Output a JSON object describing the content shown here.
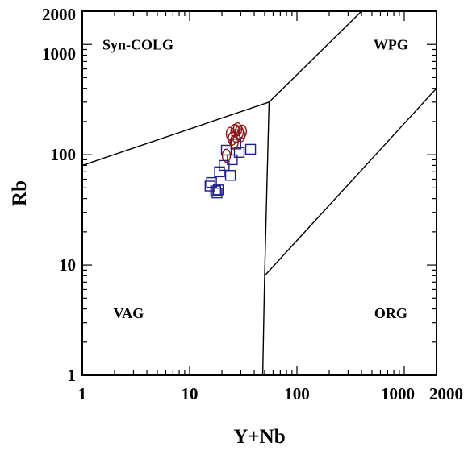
{
  "chart_data": {
    "type": "scatter",
    "xlabel": "Y+Nb",
    "ylabel": "Rb",
    "xscale": "log",
    "yscale": "log",
    "xlim": [
      1,
      2000
    ],
    "ylim": [
      1,
      2000
    ],
    "x_ticks": [
      "1",
      "10",
      "100",
      "1000",
      "2000"
    ],
    "y_ticks": [
      "1",
      "10",
      "100",
      "1000",
      "2000"
    ],
    "fields": [
      "Syn-COLG",
      "WPG",
      "VAG",
      "ORG"
    ],
    "boundaries": [
      [
        [
          1,
          80
        ],
        [
          55,
          300
        ]
      ],
      [
        [
          55,
          300
        ],
        [
          400,
          2000
        ]
      ],
      [
        [
          55,
          300
        ],
        [
          50,
          8
        ]
      ],
      [
        [
          50,
          8
        ],
        [
          2000,
          400
        ]
      ],
      [
        [
          50,
          8
        ],
        [
          48,
          1
        ]
      ]
    ],
    "series": [
      {
        "marker": "square",
        "color": "#1f1f8f",
        "points": [
          [
            15.5,
            52
          ],
          [
            16,
            56
          ],
          [
            17.5,
            47
          ],
          [
            18,
            45
          ],
          [
            18.5,
            48
          ],
          [
            19,
            70
          ],
          [
            21,
            80
          ],
          [
            22,
            110
          ],
          [
            24,
            65
          ],
          [
            25,
            90
          ],
          [
            27,
            125
          ],
          [
            29,
            105
          ],
          [
            37,
            112
          ]
        ]
      },
      {
        "marker": "circle",
        "color": "#8b1a1a",
        "points": [
          [
            22,
            98
          ],
          [
            24,
            155
          ],
          [
            25,
            140
          ],
          [
            26,
            130
          ],
          [
            26.5,
            165
          ],
          [
            27,
            148
          ],
          [
            28,
            170
          ],
          [
            29,
            160
          ],
          [
            30,
            150
          ],
          [
            31,
            162
          ]
        ]
      }
    ]
  }
}
